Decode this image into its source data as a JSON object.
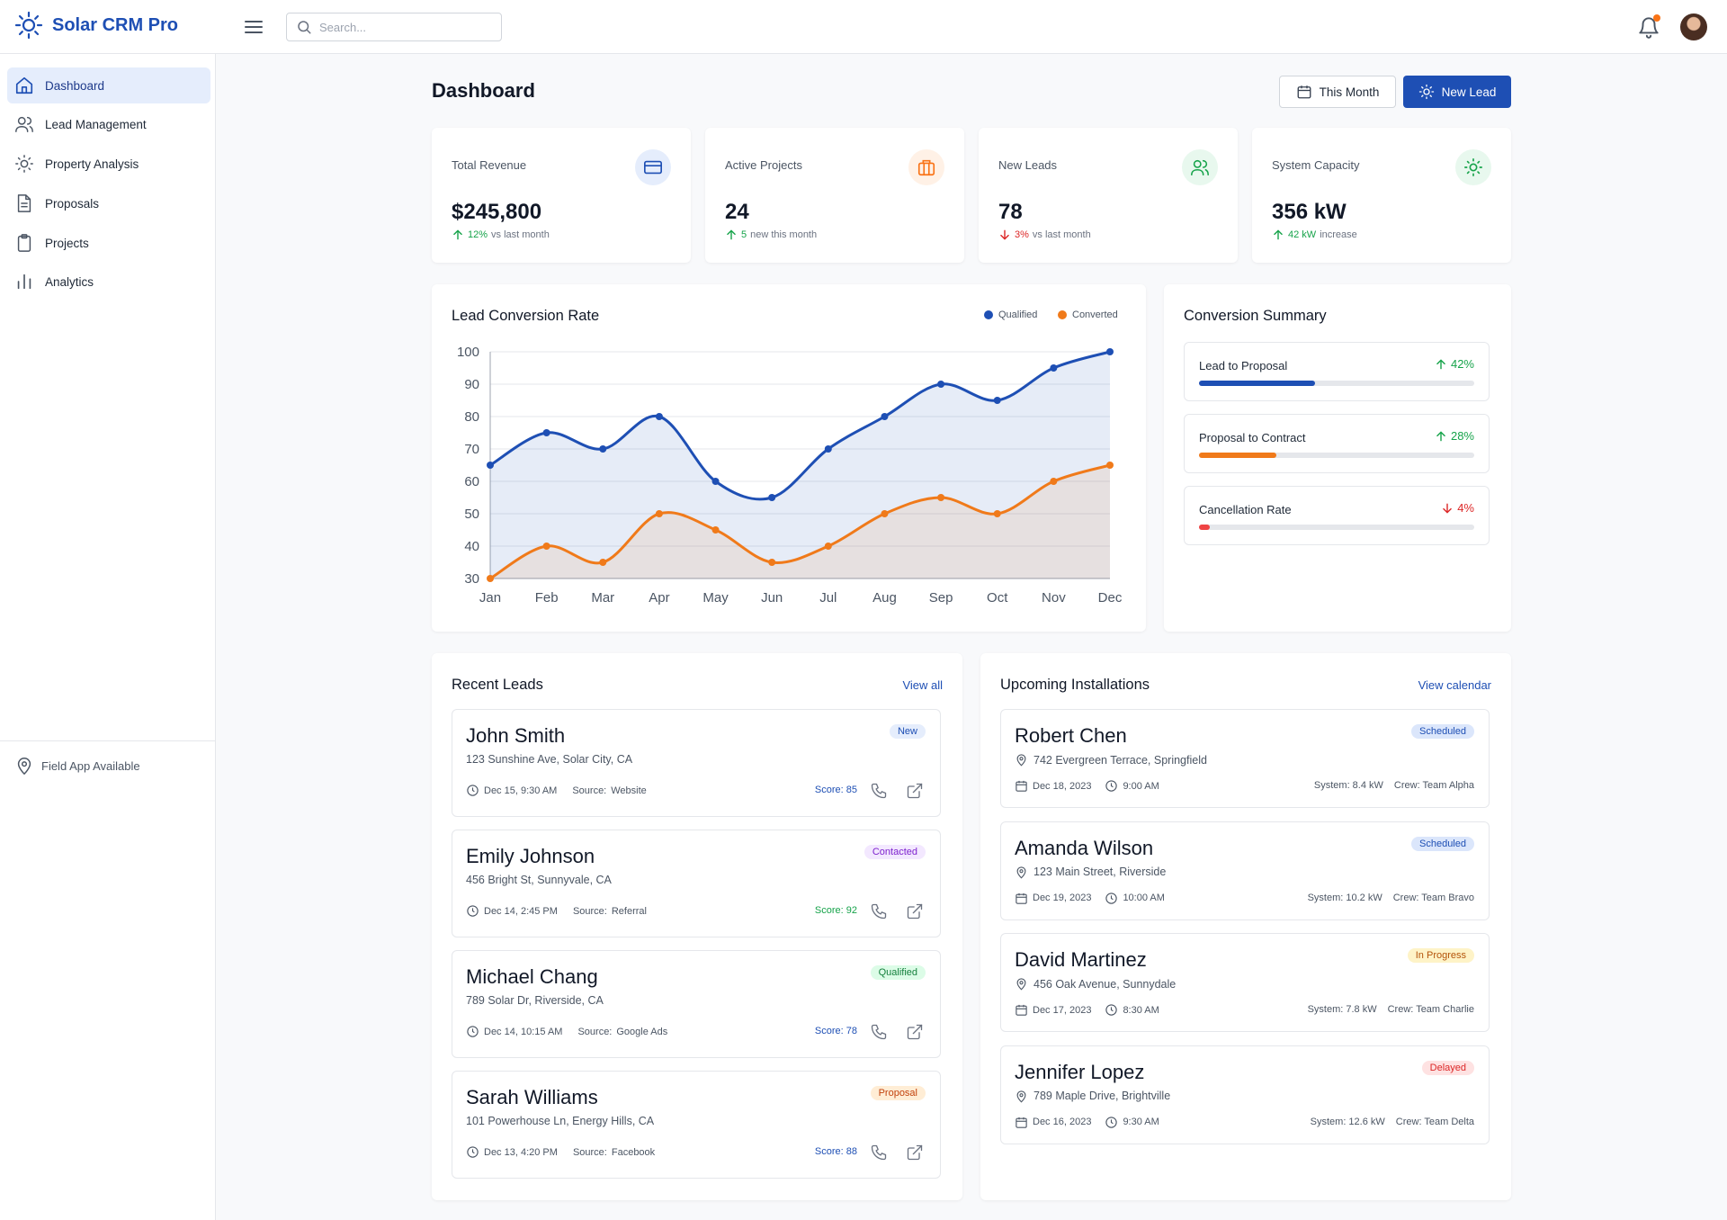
{
  "app": {
    "name": "Solar CRM Pro"
  },
  "search": {
    "placeholder": "Search..."
  },
  "sidebar": {
    "items": [
      {
        "label": "Dashboard",
        "active": true,
        "icon": "home-icon"
      },
      {
        "label": "Lead Management",
        "icon": "users-icon"
      },
      {
        "label": "Property Analysis",
        "icon": "sun-icon"
      },
      {
        "label": "Proposals",
        "icon": "document-icon"
      },
      {
        "label": "Projects",
        "icon": "clipboard-icon"
      },
      {
        "label": "Analytics",
        "icon": "bar-chart-icon"
      }
    ],
    "footer": "Field App Available"
  },
  "header": {
    "title": "Dashboard",
    "period_button": "This Month",
    "new_lead_button": "New Lead"
  },
  "stats": [
    {
      "label": "Total Revenue",
      "value": "$245,800",
      "change": "12%",
      "change_text": "vs last month",
      "direction": "up",
      "icon": "credit-card-icon",
      "icon_color": "#1e4fb4",
      "icon_bg": "#e5edfc"
    },
    {
      "label": "Active Projects",
      "value": "24",
      "change": "5",
      "change_text": "new this month",
      "direction": "up",
      "icon": "briefcase-icon",
      "icon_color": "#f97316",
      "icon_bg": "#fff1e6"
    },
    {
      "label": "New Leads",
      "value": "78",
      "change": "3%",
      "change_text": "vs last month",
      "direction": "down",
      "icon": "users-icon",
      "icon_color": "#16a34a",
      "icon_bg": "#e8f8ee"
    },
    {
      "label": "System Capacity",
      "value": "356 kW",
      "change": "42 kW",
      "change_text": "increase",
      "direction": "up",
      "icon": "sun-icon",
      "icon_color": "#16a34a",
      "icon_bg": "#e8f8ee"
    }
  ],
  "chart_data": {
    "type": "line",
    "title": "Lead Conversion Rate",
    "categories": [
      "Jan",
      "Feb",
      "Mar",
      "Apr",
      "May",
      "Jun",
      "Jul",
      "Aug",
      "Sep",
      "Oct",
      "Nov",
      "Dec"
    ],
    "series": [
      {
        "name": "Qualified",
        "color": "#1e4fb4",
        "values": [
          65,
          75,
          70,
          80,
          60,
          55,
          70,
          80,
          90,
          85,
          95,
          100
        ]
      },
      {
        "name": "Converted",
        "color": "#f07a1a",
        "values": [
          30,
          40,
          35,
          50,
          45,
          35,
          40,
          50,
          55,
          50,
          60,
          65
        ]
      }
    ],
    "ylim": [
      30,
      100
    ],
    "yticks": [
      "30",
      "40",
      "50",
      "60",
      "70",
      "80",
      "90",
      "100"
    ],
    "grid": true,
    "legend": "top-right"
  },
  "conversion_summary": {
    "title": "Conversion Summary",
    "items": [
      {
        "label": "Lead to Proposal",
        "value": "42%",
        "percent": 42,
        "direction": "up",
        "color": "#1e4fb4"
      },
      {
        "label": "Proposal to Contract",
        "value": "28%",
        "percent": 28,
        "direction": "up",
        "color": "#f07a1a"
      },
      {
        "label": "Cancellation Rate",
        "value": "4%",
        "percent": 4,
        "direction": "down",
        "color": "#ef4444"
      }
    ]
  },
  "recent_leads": {
    "title": "Recent Leads",
    "view_all": "View all",
    "items": [
      {
        "name": "John Smith",
        "address": "123 Sunshine Ave, Solar City, CA",
        "time": "Dec 15, 9:30 AM",
        "source_label": "Source:",
        "source": "Website",
        "score": "Score: 85",
        "score_color": "#1e4fb4",
        "status": "New",
        "status_bg": "#e5edfc",
        "status_color": "#1e4fb4"
      },
      {
        "name": "Emily Johnson",
        "address": "456 Bright St, Sunnyvale, CA",
        "time": "Dec 14, 2:45 PM",
        "source_label": "Source:",
        "source": "Referral",
        "score": "Score: 92",
        "score_color": "#16a34a",
        "status": "Contacted",
        "status_bg": "#f3e8ff",
        "status_color": "#7e22ce"
      },
      {
        "name": "Michael Chang",
        "address": "789 Solar Dr, Riverside, CA",
        "time": "Dec 14, 10:15 AM",
        "source_label": "Source:",
        "source": "Google Ads",
        "score": "Score: 78",
        "score_color": "#1e4fb4",
        "status": "Qualified",
        "status_bg": "#dcfce7",
        "status_color": "#15803d"
      },
      {
        "name": "Sarah Williams",
        "address": "101 Powerhouse Ln, Energy Hills, CA",
        "time": "Dec 13, 4:20 PM",
        "source_label": "Source:",
        "source": "Facebook",
        "score": "Score: 88",
        "score_color": "#1e4fb4",
        "status": "Proposal",
        "status_bg": "#ffedd5",
        "status_color": "#c2410c"
      }
    ]
  },
  "installations": {
    "title": "Upcoming Installations",
    "view_all": "View calendar",
    "items": [
      {
        "name": "Robert Chen",
        "address": "742 Evergreen Terrace, Springfield",
        "date": "Dec 18, 2023",
        "time": "9:00 AM",
        "system": "System: 8.4 kW",
        "crew": "Crew: Team Alpha",
        "status": "Scheduled",
        "status_bg": "#dbe6fb",
        "status_color": "#1e4fb4"
      },
      {
        "name": "Amanda Wilson",
        "address": "123 Main Street, Riverside",
        "date": "Dec 19, 2023",
        "time": "10:00 AM",
        "system": "System: 10.2 kW",
        "crew": "Crew: Team Bravo",
        "status": "Scheduled",
        "status_bg": "#dbe6fb",
        "status_color": "#1e4fb4"
      },
      {
        "name": "David Martinez",
        "address": "456 Oak Avenue, Sunnydale",
        "date": "Dec 17, 2023",
        "time": "8:30 AM",
        "system": "System: 7.8 kW",
        "crew": "Crew: Team Charlie",
        "status": "In Progress",
        "status_bg": "#fef3c7",
        "status_color": "#b45309"
      },
      {
        "name": "Jennifer Lopez",
        "address": "789 Maple Drive, Brightville",
        "date": "Dec 16, 2023",
        "time": "9:30 AM",
        "system": "System: 12.6 kW",
        "crew": "Crew: Team Delta",
        "status": "Delayed",
        "status_bg": "#fee2e2",
        "status_color": "#dc2626"
      }
    ]
  }
}
